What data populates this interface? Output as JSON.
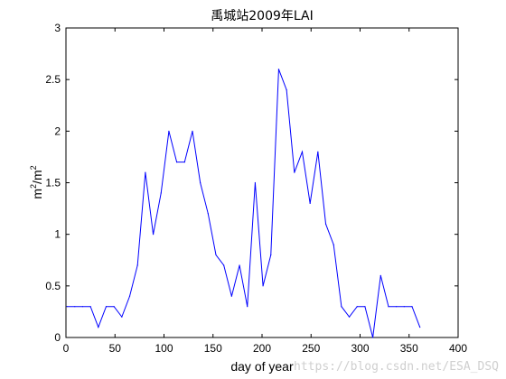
{
  "chart_data": {
    "type": "line",
    "title": "禹城站2009年LAI",
    "xlabel": "day of year",
    "ylabel": "m²/m²",
    "ylabel_base": "m",
    "ylabel_sup1": "2",
    "ylabel_mid": "/m",
    "ylabel_sup2": "2",
    "xlim": [
      0,
      400
    ],
    "ylim": [
      0,
      3
    ],
    "xticks": [
      0,
      50,
      100,
      150,
      200,
      250,
      300,
      350,
      400
    ],
    "yticks": [
      0,
      0.5,
      1,
      1.5,
      2,
      2.5,
      3
    ],
    "xtick_labels": [
      "0",
      "50",
      "100",
      "150",
      "200",
      "250",
      "300",
      "350",
      "400"
    ],
    "ytick_labels": [
      "0",
      "0.5",
      "1",
      "1.5",
      "2",
      "2.5",
      "3"
    ],
    "grid": false,
    "line_color": "#0000ff",
    "series": [
      {
        "x": [
          1,
          9,
          17,
          25,
          33,
          41,
          49,
          57,
          65,
          73,
          81,
          89,
          97,
          105,
          113,
          121,
          129,
          137,
          145,
          153,
          161,
          169,
          177,
          185,
          193,
          201,
          209,
          217,
          225,
          233,
          241,
          249,
          257,
          265,
          273,
          281,
          289,
          297,
          305,
          313,
          321,
          329,
          337,
          345,
          353,
          361
        ],
        "values": [
          0.3,
          0.3,
          0.3,
          0.3,
          0.1,
          0.3,
          0.3,
          0.2,
          0.4,
          0.7,
          1.6,
          1.0,
          1.4,
          2.0,
          1.7,
          1.7,
          2.0,
          1.5,
          1.2,
          0.8,
          0.7,
          0.4,
          0.7,
          0.3,
          1.5,
          0.5,
          0.8,
          2.6,
          2.4,
          1.6,
          1.8,
          1.3,
          1.8,
          1.1,
          0.9,
          0.3,
          0.2,
          0.3,
          0.3,
          0.0,
          0.6,
          0.3,
          0.3,
          0.3,
          0.3,
          0.1
        ]
      }
    ]
  },
  "watermark": "https://blog.csdn.net/ESA_DSQ"
}
